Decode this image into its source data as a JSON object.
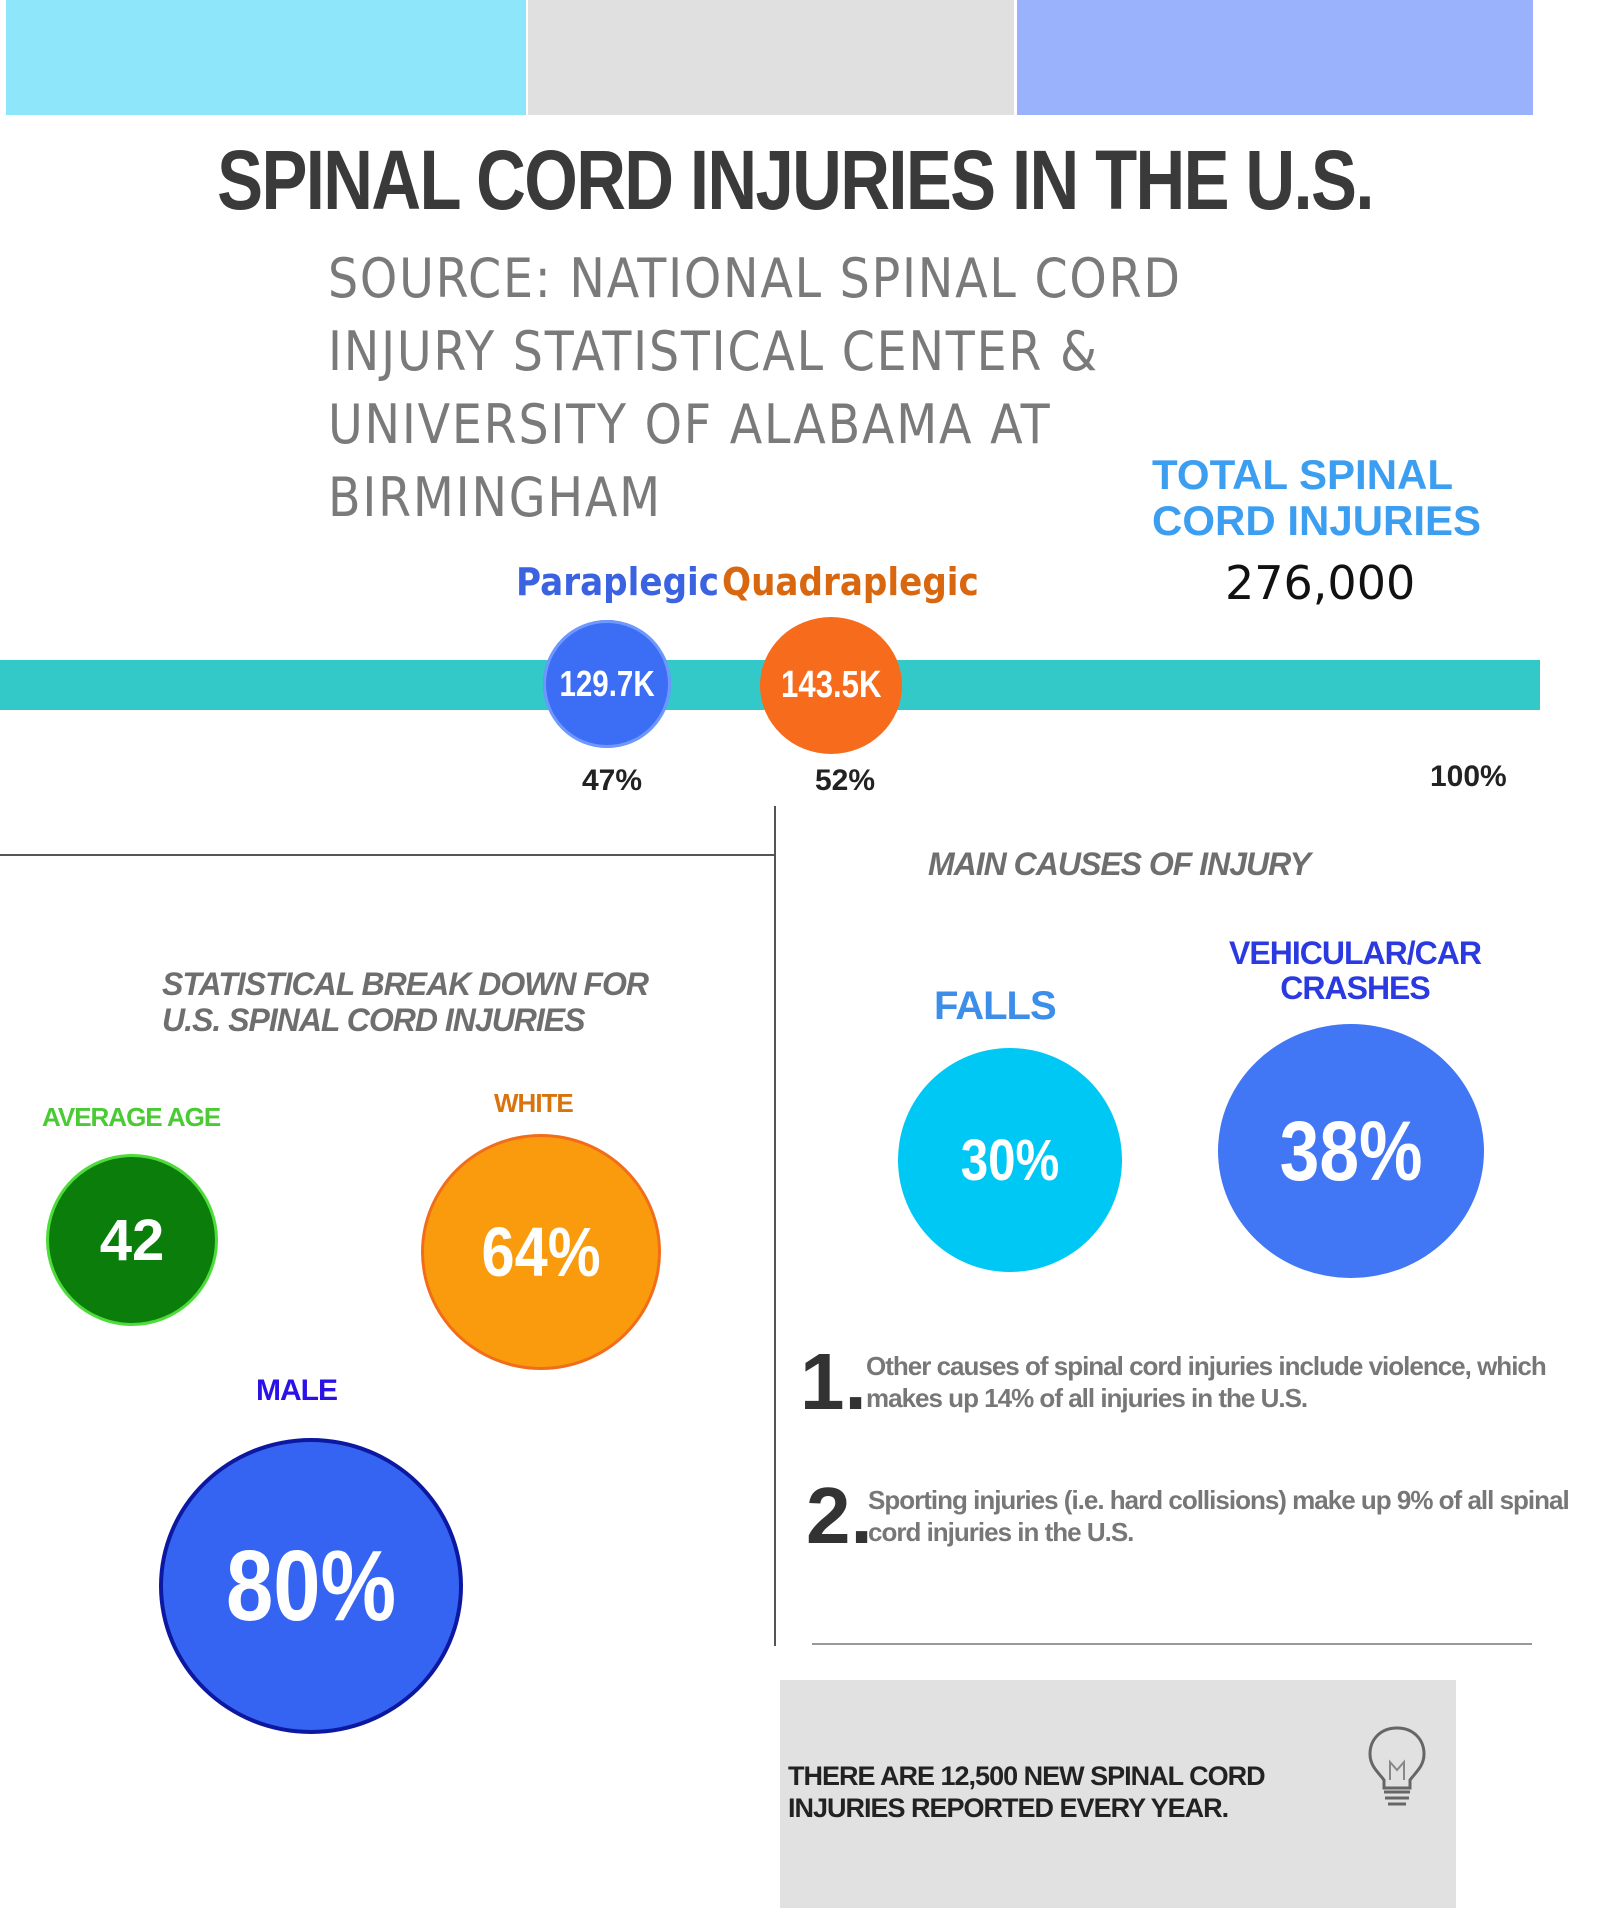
{
  "header": {
    "title": "SPINAL CORD INJURIES IN THE U.S.",
    "source_lines": [
      "SOURCE: NATIONAL SPINAL CORD",
      "INJURY STATISTICAL CENTER &",
      "UNIVERSITY OF ALABAMA AT",
      "BIRMINGHAM"
    ]
  },
  "colors": {
    "top_bar_1": "#8ee6fb",
    "top_bar_2": "#e0e0e0",
    "top_bar_3": "#9ab2fb",
    "band": "#33c9c9",
    "paraplegic": "#3b6ef5",
    "quadraplegic": "#f76b1c",
    "age": "#0b7d0b",
    "white": "#f99b0c",
    "male": "#3564f2",
    "falls": "#00c8f4",
    "vehicular": "#4176f5"
  },
  "total": {
    "label_lines": [
      "TOTAL SPINAL",
      "CORD INJURIES"
    ],
    "value": "276,000"
  },
  "injury_type": {
    "paraplegic": {
      "label": "Paraplegic",
      "value": "129.7K",
      "percent": "47%"
    },
    "quadraplegic": {
      "label": "Quadraplegic",
      "value": "143.5K",
      "percent": "52%"
    },
    "total_percent": "100%"
  },
  "breakdown": {
    "title_lines": [
      "STATISTICAL BREAK DOWN FOR",
      "U.S. SPINAL CORD INJURIES"
    ],
    "average_age": {
      "label": "AVERAGE AGE",
      "value": "42"
    },
    "white": {
      "label": "WHITE",
      "value": "64%"
    },
    "male": {
      "label": "MALE",
      "value": "80%"
    }
  },
  "causes": {
    "title": "MAIN CAUSES OF INJURY",
    "falls": {
      "label": "FALLS",
      "value": "30%"
    },
    "vehicular": {
      "label_lines": [
        "VEHICULAR/CAR",
        "CRASHES"
      ],
      "value": "38%"
    },
    "notes": [
      {
        "number": "1.",
        "text": "Other causes of spinal cord injuries include violence, which makes up 14% of all injuries in the U.S."
      },
      {
        "number": "2.",
        "text": "Sporting injuries (i.e. hard collisions) make up 9% of all spinal cord injuries in the U.S."
      }
    ]
  },
  "fact": {
    "text_lines": [
      "THERE ARE 12,500 NEW SPINAL CORD",
      "INJURIES REPORTED EVERY YEAR."
    ],
    "icon": "lightbulb-icon"
  }
}
